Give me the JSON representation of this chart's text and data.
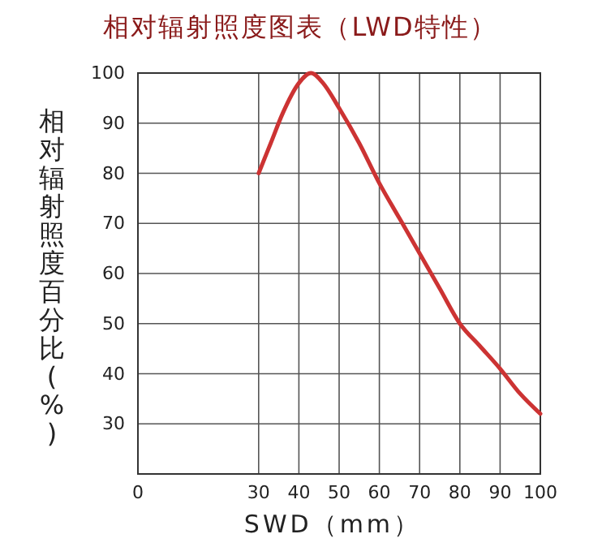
{
  "chart_data": {
    "type": "line",
    "title": "相对辐射照度图表（LWD特性）",
    "xlabel": "SWD（mm）",
    "ylabel": "相对辐射照度百分比(%)",
    "x": [
      30,
      33,
      36,
      40,
      43,
      46,
      50,
      55,
      60,
      65,
      70,
      75,
      80,
      85,
      90,
      95,
      100
    ],
    "series": [
      {
        "color": "#cc3333",
        "values": [
          80,
          86,
          92,
          98,
          100,
          98,
          93,
          86,
          78,
          71,
          64,
          57,
          50,
          45.5,
          41,
          36,
          32
        ]
      }
    ],
    "xlim": [
      0,
      100
    ],
    "xticks": [
      0,
      30,
      40,
      50,
      60,
      70,
      80,
      90,
      100
    ],
    "ylim": [
      20,
      100
    ],
    "yticks": [
      {
        "value": 20,
        "label": null
      },
      30,
      40,
      50,
      60,
      70,
      80,
      90,
      100
    ],
    "grid": true,
    "marker": "none",
    "line_style": "solid"
  }
}
